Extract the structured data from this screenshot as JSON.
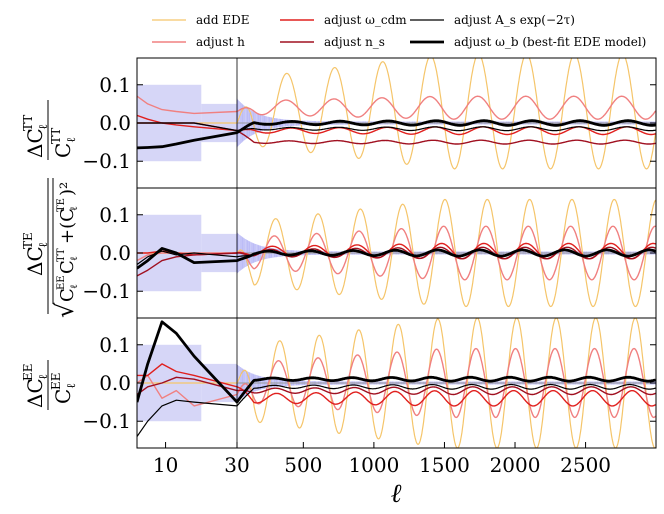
{
  "chart_data": {
    "type": "line",
    "xlabel": "ℓ",
    "x_ticks": [
      "10",
      "30",
      "500",
      "1000",
      "1500",
      "2000",
      "2500"
    ],
    "y_ticks": [
      "0.1",
      "0.0",
      "−0.1"
    ],
    "ylim": [
      -0.17,
      0.17
    ],
    "x_low_range": [
      2,
      30
    ],
    "x_high_range": [
      30,
      2999
    ],
    "legend": [
      {
        "name": "add EDE",
        "color": "#f5c56a",
        "width": 1.2
      },
      {
        "name": "adjust h",
        "color": "#f08080",
        "width": 1.4
      },
      {
        "name": "adjust ω_cdm",
        "color": "#e0201e",
        "width": 1.4
      },
      {
        "name": "adjust n_s",
        "color": "#a01020",
        "width": 1.4
      },
      {
        "name": "adjust A_s exp(−2τ)",
        "color": "#000000",
        "width": 1.2
      },
      {
        "name": "adjust ω_b (best-fit EDE model)",
        "color": "#000000",
        "width": 2.8
      }
    ],
    "panels": [
      {
        "id": "TT",
        "ylabel": "ΔC_ℓ^TT / C_ℓ^TT",
        "series": [
          {
            "name": "add EDE",
            "amp": 0.15,
            "period": 340,
            "phase": 0.8,
            "offset": 0.03,
            "low": [
              0.0,
              0.0,
              0.0,
              0.0,
              0.0,
              0.0
            ]
          },
          {
            "name": "adjust h",
            "amp": 0.03,
            "period": 340,
            "phase": 0.9,
            "offset": 0.04,
            "low": [
              0.07,
              0.05,
              0.035,
              0.03,
              0.025,
              0.03
            ]
          },
          {
            "name": "adjust ω_cdm",
            "amp": 0.01,
            "period": 340,
            "phase": 0.2,
            "offset": -0.02,
            "low": [
              0.02,
              0.01,
              0.0,
              -0.005,
              -0.01,
              -0.02
            ]
          },
          {
            "name": "adjust n_s",
            "amp": 0.005,
            "period": 340,
            "phase": 0.5,
            "offset": -0.05,
            "low": [
              0.0,
              0.0,
              0.0,
              0.0,
              0.0,
              -0.02
            ]
          },
          {
            "name": "adjust A_s exp(−2τ)",
            "amp": 0.005,
            "period": 340,
            "phase": 0.3,
            "offset": -0.015,
            "low": [
              0.0,
              0.0,
              0.0,
              0.0,
              0.0,
              -0.02
            ]
          },
          {
            "name": "adjust ω_b (best-fit EDE model)",
            "amp": 0.006,
            "period": 340,
            "phase": 0.1,
            "offset": 0.0,
            "low": [
              -0.065,
              -0.064,
              -0.062,
              -0.055,
              -0.045,
              -0.025
            ]
          }
        ],
        "band": {
          "low_1": 0.1,
          "low_2": 0.05,
          "high_start": 0.06
        }
      },
      {
        "id": "TE",
        "ylabel": "ΔC_ℓ^TE / √(C_ℓ^EE C_ℓ^TT + (C_ℓ^TE)²)",
        "series": [
          {
            "name": "add EDE",
            "amp": 0.14,
            "period": 300,
            "phase": 1.5,
            "offset": 0.0,
            "low": [
              0.0,
              0.0,
              0.0,
              0.0,
              0.0,
              0.0
            ]
          },
          {
            "name": "adjust h",
            "amp": 0.07,
            "period": 300,
            "phase": 1.7,
            "offset": 0.0,
            "low": [
              -0.02,
              -0.005,
              0.0,
              0.0,
              0.0,
              0.0
            ]
          },
          {
            "name": "adjust ω_cdm",
            "amp": 0.02,
            "period": 300,
            "phase": 2.0,
            "offset": 0.005,
            "low": [
              0.0,
              0.0,
              0.005,
              0.0,
              -0.005,
              0.0
            ]
          },
          {
            "name": "adjust n_s",
            "amp": 0.015,
            "period": 300,
            "phase": 2.2,
            "offset": 0.0,
            "low": [
              -0.06,
              -0.045,
              -0.02,
              -0.01,
              -0.005,
              0.0
            ]
          },
          {
            "name": "adjust A_s exp(−2τ)",
            "amp": 0.008,
            "period": 300,
            "phase": 2.4,
            "offset": 0.0,
            "low": [
              -0.03,
              -0.01,
              0.005,
              -0.005,
              0.0,
              -0.01
            ]
          },
          {
            "name": "adjust ω_b (best-fit EDE model)",
            "amp": 0.008,
            "period": 300,
            "phase": 2.6,
            "offset": 0.0,
            "low": [
              -0.04,
              -0.02,
              0.012,
              0.0,
              -0.025,
              -0.02
            ]
          }
        ],
        "band": {
          "low_1": 0.1,
          "low_2": 0.05,
          "high_start": 0.05
        }
      },
      {
        "id": "EE",
        "ylabel": "ΔC_ℓ^EE / C_ℓ^EE",
        "series": [
          {
            "name": "add EDE",
            "amp": 0.17,
            "period": 280,
            "phase": 0.4,
            "offset": 0.0,
            "low": [
              0.0,
              0.0,
              0.0,
              0.0,
              0.0,
              0.0
            ]
          },
          {
            "name": "adjust h",
            "amp": 0.09,
            "period": 280,
            "phase": 0.6,
            "offset": 0.0,
            "low": [
              0.0,
              0.02,
              -0.04,
              -0.02,
              -0.06,
              -0.03
            ]
          },
          {
            "name": "adjust ω_cdm",
            "amp": 0.02,
            "period": 280,
            "phase": 0.9,
            "offset": -0.04,
            "low": [
              0.02,
              0.02,
              0.05,
              0.03,
              0.02,
              -0.01
            ]
          },
          {
            "name": "adjust n_s",
            "amp": 0.01,
            "period": 280,
            "phase": 1.1,
            "offset": -0.02,
            "low": [
              -0.03,
              -0.01,
              0.0,
              0.015,
              0.01,
              -0.02
            ]
          },
          {
            "name": "adjust A_s exp(−2τ)",
            "amp": 0.006,
            "period": 280,
            "phase": 1.3,
            "offset": -0.01,
            "low": [
              -0.14,
              -0.1,
              -0.06,
              -0.045,
              -0.05,
              -0.06
            ]
          },
          {
            "name": "adjust ω_b (best-fit EDE model)",
            "amp": 0.005,
            "period": 280,
            "phase": 1.5,
            "offset": 0.01,
            "low": [
              -0.05,
              0.05,
              0.16,
              0.13,
              0.07,
              -0.05
            ]
          }
        ],
        "band": {
          "low_1": 0.1,
          "low_2": 0.05,
          "high_start": 0.045
        }
      }
    ]
  }
}
